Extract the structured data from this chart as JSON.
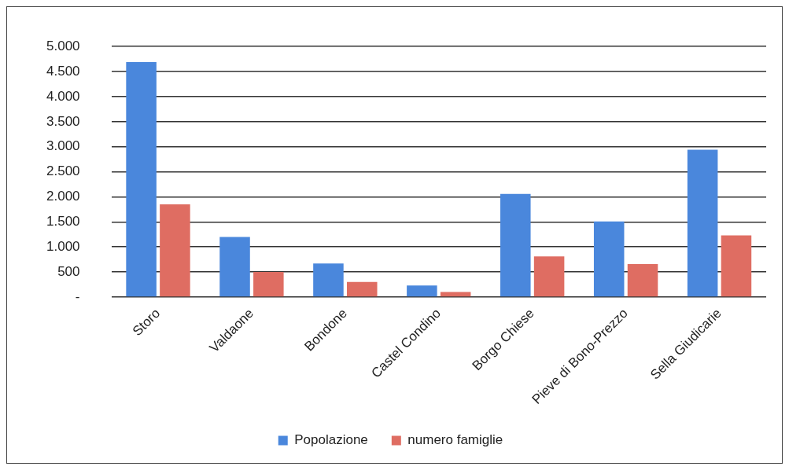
{
  "chart_data": {
    "type": "bar",
    "categories": [
      "Storo",
      "Valdaone",
      "Bondone",
      "Castel Condino",
      "Borgo Chiese",
      "Pieve di Bono-Prezzo",
      "Sella Giudicarie"
    ],
    "series": [
      {
        "name": "Popolazione",
        "color": "#4a87dc",
        "values": [
          4690,
          1200,
          670,
          230,
          2060,
          1510,
          2940
        ]
      },
      {
        "name": "numero famiglie",
        "color": "#df6d62",
        "values": [
          1850,
          500,
          300,
          100,
          810,
          660,
          1230
        ]
      }
    ],
    "ylim": [
      0,
      5000
    ],
    "yticks": [
      {
        "value": 0,
        "label": "-"
      },
      500,
      {
        "value": 1000,
        "label": "1.000"
      },
      {
        "value": 1500,
        "label": "1.500"
      },
      {
        "value": 2000,
        "label": "2.000"
      },
      {
        "value": 2500,
        "label": "2.500"
      },
      {
        "value": 3000,
        "label": "3.000"
      },
      {
        "value": 3500,
        "label": "3.500"
      },
      {
        "value": 4000,
        "label": "4.000"
      },
      {
        "value": 4500,
        "label": "4.500"
      },
      {
        "value": 5000,
        "label": "5.000"
      }
    ],
    "grid": "y",
    "legend": "bottom"
  }
}
